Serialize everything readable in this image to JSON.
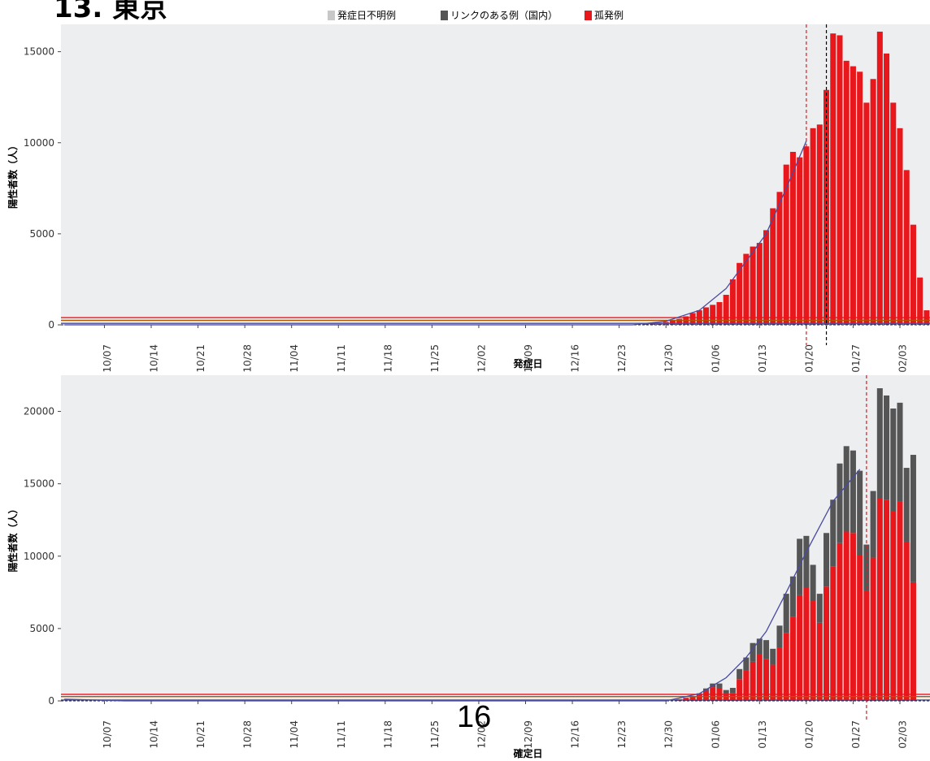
{
  "page": {
    "title": "13. 東京",
    "page_number": "16"
  },
  "legend": [
    {
      "label": "発症日不明例",
      "color": "#c8c8c8"
    },
    {
      "label": "リンクのある例（国内）",
      "color": "#555555"
    },
    {
      "label": "孤発例",
      "color": "#e8171b"
    }
  ],
  "colors": {
    "isolated": "#e8171b",
    "linked": "#555555",
    "unknown": "#c8c8c8",
    "panel_bg": "#eceef0",
    "trend": "#4a4aa0",
    "threshold_red": "#e8171b"
  },
  "chart_data": [
    {
      "type": "bar",
      "xlabel": "発症日",
      "ylabel": "陽性者数（人）",
      "ylim": [
        0,
        16500
      ],
      "yticks": [
        0,
        5000,
        10000,
        15000
      ],
      "xticks": [
        "10/07",
        "10/14",
        "10/21",
        "10/28",
        "11/04",
        "11/11",
        "11/18",
        "11/25",
        "12/02",
        "12/09",
        "12/16",
        "12/23",
        "12/30",
        "01/06",
        "01/13",
        "01/20",
        "01/27",
        "02/03"
      ],
      "x_start": "10/01",
      "x_step_days": 1,
      "n_days": 130,
      "stack_order": [
        "isolated",
        "linked"
      ],
      "series": [
        {
          "name": "孤発例",
          "key": "isolated",
          "bars": [
            {
              "x": "12/27",
              "y": 60
            },
            {
              "x": "12/28",
              "y": 90
            },
            {
              "x": "12/29",
              "y": 120
            },
            {
              "x": "12/30",
              "y": 160
            },
            {
              "x": "12/31",
              "y": 230
            },
            {
              "x": "01/01",
              "y": 330
            },
            {
              "x": "01/02",
              "y": 470
            },
            {
              "x": "01/03",
              "y": 650
            },
            {
              "x": "01/04",
              "y": 800
            },
            {
              "x": "01/05",
              "y": 960
            },
            {
              "x": "01/06",
              "y": 1100
            },
            {
              "x": "01/07",
              "y": 1250
            },
            {
              "x": "01/08",
              "y": 1650
            },
            {
              "x": "01/09",
              "y": 2500
            },
            {
              "x": "01/10",
              "y": 3400
            },
            {
              "x": "01/11",
              "y": 3900
            },
            {
              "x": "01/12",
              "y": 4300
            },
            {
              "x": "01/13",
              "y": 4500
            },
            {
              "x": "01/14",
              "y": 5200
            },
            {
              "x": "01/15",
              "y": 6400
            },
            {
              "x": "01/16",
              "y": 7300
            },
            {
              "x": "01/17",
              "y": 8800
            },
            {
              "x": "01/18",
              "y": 9500
            },
            {
              "x": "01/19",
              "y": 9200
            },
            {
              "x": "01/20",
              "y": 9800
            },
            {
              "x": "01/21",
              "y": 10800
            },
            {
              "x": "01/22",
              "y": 11000
            },
            {
              "x": "01/23",
              "y": 12900
            },
            {
              "x": "01/24",
              "y": 16000
            },
            {
              "x": "01/25",
              "y": 15900
            },
            {
              "x": "01/26",
              "y": 14500
            },
            {
              "x": "01/27",
              "y": 14200
            },
            {
              "x": "01/28",
              "y": 13900
            },
            {
              "x": "01/29",
              "y": 12200
            },
            {
              "x": "01/30",
              "y": 13500
            },
            {
              "x": "01/31",
              "y": 16100
            },
            {
              "x": "02/01",
              "y": 14900
            },
            {
              "x": "02/02",
              "y": 12200
            },
            {
              "x": "02/03",
              "y": 10800
            },
            {
              "x": "02/04",
              "y": 8500
            },
            {
              "x": "02/05",
              "y": 5500
            },
            {
              "x": "02/06",
              "y": 2600
            },
            {
              "x": "02/07",
              "y": 800
            }
          ]
        },
        {
          "name": "リンクのある例（国内）",
          "key": "linked",
          "bars": []
        }
      ],
      "trend": [
        {
          "x": "10/01",
          "y": 0
        },
        {
          "x": "12/25",
          "y": 0
        },
        {
          "x": "12/30",
          "y": 200
        },
        {
          "x": "01/04",
          "y": 800
        },
        {
          "x": "01/08",
          "y": 2000
        },
        {
          "x": "01/11",
          "y": 3500
        },
        {
          "x": "01/14",
          "y": 5000
        },
        {
          "x": "01/17",
          "y": 7500
        },
        {
          "x": "01/20",
          "y": 10100
        }
      ],
      "hlines": [
        {
          "y": 400,
          "color": "threshold_red"
        },
        {
          "y": 250,
          "color": "#b35500"
        },
        {
          "y": 80,
          "color": "trend"
        }
      ],
      "vlines": [
        {
          "x": "01/20",
          "color": "threshold_red"
        },
        {
          "x": "01/23",
          "color": "#000000"
        }
      ],
      "grid": false
    },
    {
      "type": "bar",
      "xlabel": "確定日",
      "ylabel": "陽性者数（人）",
      "ylim": [
        0,
        22500
      ],
      "yticks": [
        0,
        5000,
        10000,
        15000,
        20000
      ],
      "xticks": [
        "10/07",
        "10/14",
        "10/21",
        "10/28",
        "11/04",
        "11/11",
        "11/18",
        "11/25",
        "12/02",
        "12/09",
        "12/16",
        "12/23",
        "12/30",
        "01/06",
        "01/13",
        "01/20",
        "01/27",
        "02/03"
      ],
      "x_start": "10/01",
      "x_step_days": 1,
      "n_days": 130,
      "stack_order": [
        "isolated",
        "linked"
      ],
      "series": [
        {
          "name": "孤発例",
          "key": "isolated",
          "bars": [
            {
              "x": "01/01",
              "y": 100
            },
            {
              "x": "01/02",
              "y": 180
            },
            {
              "x": "01/03",
              "y": 250
            },
            {
              "x": "01/04",
              "y": 420
            },
            {
              "x": "01/05",
              "y": 700
            },
            {
              "x": "01/06",
              "y": 950
            },
            {
              "x": "01/07",
              "y": 900
            },
            {
              "x": "01/08",
              "y": 500
            },
            {
              "x": "01/09",
              "y": 550
            },
            {
              "x": "01/10",
              "y": 1500
            },
            {
              "x": "01/11",
              "y": 2100
            },
            {
              "x": "01/12",
              "y": 2700
            },
            {
              "x": "01/13",
              "y": 3200
            },
            {
              "x": "01/14",
              "y": 2900
            },
            {
              "x": "01/15",
              "y": 2500
            },
            {
              "x": "01/16",
              "y": 3700
            },
            {
              "x": "01/17",
              "y": 4700
            },
            {
              "x": "01/18",
              "y": 5800
            },
            {
              "x": "01/19",
              "y": 7300
            },
            {
              "x": "01/20",
              "y": 7800
            },
            {
              "x": "01/21",
              "y": 6900
            },
            {
              "x": "01/22",
              "y": 5400
            },
            {
              "x": "01/23",
              "y": 7900
            },
            {
              "x": "01/24",
              "y": 9300
            },
            {
              "x": "01/25",
              "y": 10900
            },
            {
              "x": "01/26",
              "y": 11700
            },
            {
              "x": "01/27",
              "y": 11600
            },
            {
              "x": "01/28",
              "y": 10100
            },
            {
              "x": "01/29",
              "y": 7600
            },
            {
              "x": "01/30",
              "y": 9900
            },
            {
              "x": "01/31",
              "y": 14000
            },
            {
              "x": "02/01",
              "y": 13900
            },
            {
              "x": "02/02",
              "y": 13100
            },
            {
              "x": "02/03",
              "y": 13800
            },
            {
              "x": "02/04",
              "y": 11000
            },
            {
              "x": "02/05",
              "y": 8200
            }
          ]
        },
        {
          "name": "リンクのある例（国内）",
          "key": "linked",
          "bars": [
            {
              "x": "01/01",
              "y": 20
            },
            {
              "x": "01/02",
              "y": 40
            },
            {
              "x": "01/03",
              "y": 60
            },
            {
              "x": "01/04",
              "y": 100
            },
            {
              "x": "01/05",
              "y": 160
            },
            {
              "x": "01/06",
              "y": 250
            },
            {
              "x": "01/07",
              "y": 300
            },
            {
              "x": "01/08",
              "y": 250
            },
            {
              "x": "01/09",
              "y": 350
            },
            {
              "x": "01/10",
              "y": 700
            },
            {
              "x": "01/11",
              "y": 900
            },
            {
              "x": "01/12",
              "y": 1300
            },
            {
              "x": "01/13",
              "y": 1100
            },
            {
              "x": "01/14",
              "y": 1300
            },
            {
              "x": "01/15",
              "y": 1100
            },
            {
              "x": "01/16",
              "y": 1500
            },
            {
              "x": "01/17",
              "y": 2700
            },
            {
              "x": "01/18",
              "y": 2800
            },
            {
              "x": "01/19",
              "y": 3900
            },
            {
              "x": "01/20",
              "y": 3600
            },
            {
              "x": "01/21",
              "y": 2500
            },
            {
              "x": "01/22",
              "y": 2000
            },
            {
              "x": "01/23",
              "y": 3700
            },
            {
              "x": "01/24",
              "y": 4600
            },
            {
              "x": "01/25",
              "y": 5500
            },
            {
              "x": "01/26",
              "y": 5900
            },
            {
              "x": "01/27",
              "y": 5700
            },
            {
              "x": "01/28",
              "y": 5800
            },
            {
              "x": "01/29",
              "y": 3200
            },
            {
              "x": "01/30",
              "y": 4600
            },
            {
              "x": "01/31",
              "y": 7600
            },
            {
              "x": "02/01",
              "y": 7200
            },
            {
              "x": "02/02",
              "y": 7100
            },
            {
              "x": "02/03",
              "y": 6800
            },
            {
              "x": "02/04",
              "y": 5100
            },
            {
              "x": "02/05",
              "y": 8800
            }
          ]
        }
      ],
      "trend": [
        {
          "x": "10/01",
          "y": 120
        },
        {
          "x": "10/10",
          "y": 0
        },
        {
          "x": "12/30",
          "y": 0
        },
        {
          "x": "01/04",
          "y": 500
        },
        {
          "x": "01/08",
          "y": 1600
        },
        {
          "x": "01/11",
          "y": 3000
        },
        {
          "x": "01/14",
          "y": 4800
        },
        {
          "x": "01/17",
          "y": 7500
        },
        {
          "x": "01/20",
          "y": 10300
        },
        {
          "x": "01/24",
          "y": 13800
        },
        {
          "x": "01/28",
          "y": 16000
        }
      ],
      "hlines": [
        {
          "y": 450,
          "color": "threshold_red"
        },
        {
          "y": 300,
          "color": "#b35500"
        },
        {
          "y": 60,
          "color": "trend"
        }
      ],
      "vlines": [
        {
          "x": "01/29",
          "color": "threshold_red"
        }
      ],
      "grid": false
    }
  ]
}
